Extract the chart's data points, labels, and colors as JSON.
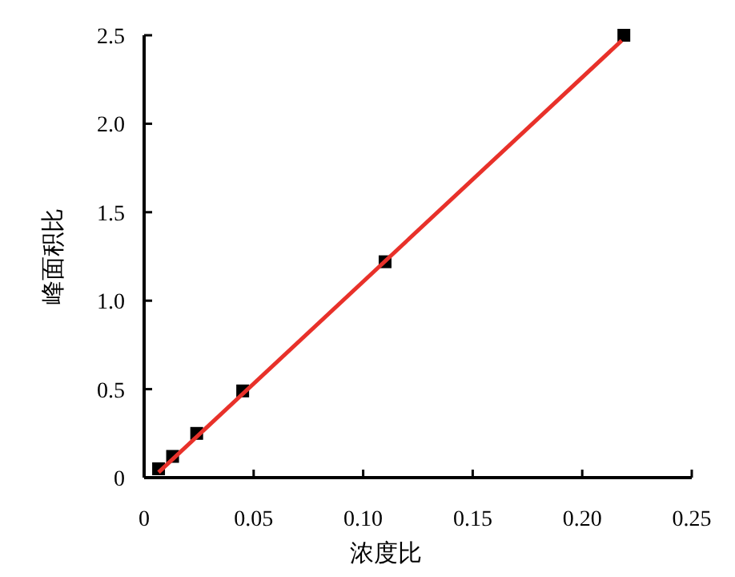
{
  "chart_data": {
    "type": "scatter",
    "xlabel": "浓度比",
    "ylabel": "峰面积比",
    "xlim": [
      0,
      0.25
    ],
    "xticks": [
      {
        "value": 0,
        "label": "0"
      },
      0.05,
      {
        "value": 0.1,
        "label": "0.10"
      },
      0.15,
      {
        "value": 0.2,
        "label": "0.20"
      },
      0.25
    ],
    "ylim": [
      0,
      2.5
    ],
    "yticks": [
      {
        "value": 0,
        "label": "0"
      },
      0.5,
      {
        "value": 1,
        "label": "1.0"
      },
      1.5,
      {
        "value": 2,
        "label": "2.0"
      },
      2.5
    ],
    "series": [
      {
        "color": "#000000",
        "marker": "square",
        "x": [
          0.0066,
          0.013,
          0.024,
          0.045,
          0.11,
          0.219
        ],
        "values": [
          0.05,
          0.12,
          0.25,
          0.49,
          1.22,
          2.5
        ]
      },
      {
        "type": "line",
        "color": "#e8312a",
        "x": [
          0.0066,
          0.218
        ],
        "values": [
          0.03,
          2.47
        ]
      }
    ]
  }
}
